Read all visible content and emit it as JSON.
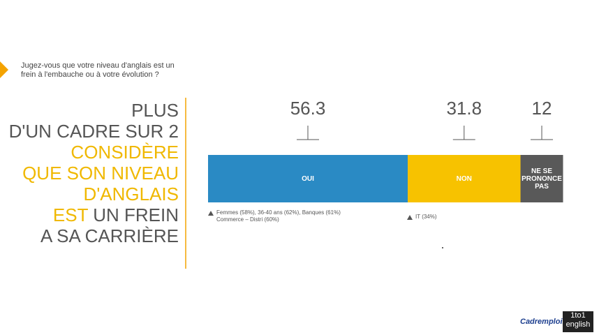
{
  "question": "Jugez-vous que votre niveau d'anglais est un frein à l'embauche ou à votre évolution ?",
  "headline": [
    [
      "PLUS"
    ],
    [
      "D'UN CADRE SUR 2"
    ],
    [
      "CONSIDÈRE"
    ],
    [
      "QUE SON NIVEAU"
    ],
    [
      "D'ANGLAIS"
    ],
    [
      "EST",
      " UN FREIN"
    ],
    [
      "A SA CARRIÈRE"
    ]
  ],
  "notes": [
    [
      "Femmes (58%), 36-40 ans (62%), Banques (61%)",
      "Commerce – Distri (60%)"
    ],
    [
      "IT (34%)"
    ]
  ],
  "logos": [
    "Cadremploi.fr",
    "1to1",
    "english"
  ],
  "chart_data": {
    "type": "stacked-bar",
    "orientation": "horizontal",
    "value_unit": "%",
    "series": [
      {
        "name": "OUI",
        "color": "#2a8ac4",
        "values": [
          56.3
        ]
      },
      {
        "name": "NON",
        "color": "#f7c200",
        "values": [
          31.8
        ]
      },
      {
        "name": "NE SE PRONONCE PAS",
        "color": "#595959",
        "values": [
          12
        ]
      }
    ],
    "xlim": [
      0,
      100
    ]
  }
}
